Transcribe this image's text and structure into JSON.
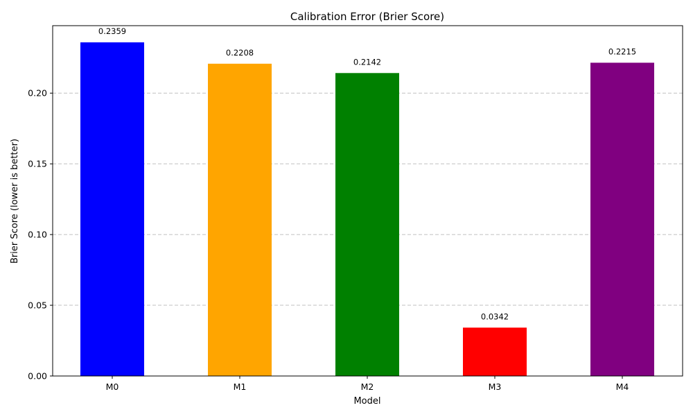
{
  "chart_data": {
    "type": "bar",
    "title": "Calibration Error (Brier Score)",
    "xlabel": "Model",
    "ylabel": "Brier Score (lower is better)",
    "categories": [
      "M0",
      "M1",
      "M2",
      "M3",
      "M4"
    ],
    "values": [
      0.2359,
      0.2208,
      0.2142,
      0.0342,
      0.2215
    ],
    "value_labels": [
      "0.2359",
      "0.2208",
      "0.2142",
      "0.0342",
      "0.2215"
    ],
    "colors": [
      "#0000ff",
      "#ffa500",
      "#008000",
      "#ff0000",
      "#800080"
    ],
    "ylim": [
      0,
      0.2477
    ],
    "yticks": [
      0.0,
      0.05,
      0.1,
      0.15,
      0.2
    ],
    "ytick_labels": [
      "0.00",
      "0.05",
      "0.10",
      "0.15",
      "0.20"
    ],
    "grid": {
      "axis": "y",
      "style": "dashed",
      "color": "#c0c0c0"
    },
    "legend": "none"
  }
}
